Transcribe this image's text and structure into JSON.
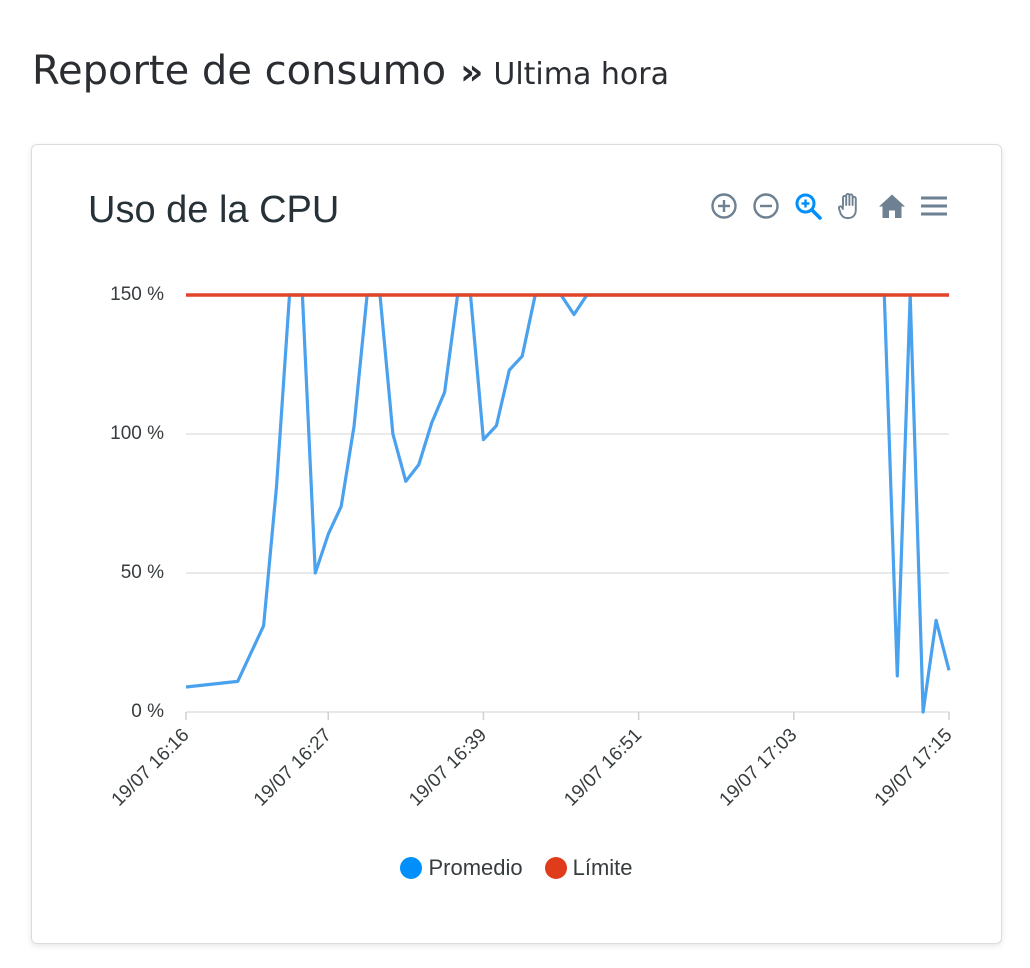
{
  "header": {
    "title": "Reporte de consumo",
    "separator": "»",
    "subtitle": "Ultima hora"
  },
  "toolbar": {
    "icons": [
      "zoom-in-icon",
      "zoom-out-icon",
      "selection-zoom-icon",
      "pan-icon",
      "reset-zoom-icon",
      "menu-icon"
    ],
    "active_color": "#008ffb",
    "inactive_color": "#6e8192"
  },
  "chart_data": {
    "type": "line",
    "title": "Uso de la CPU",
    "x_tick_labels": [
      "19/07 16:16",
      "19/07 16:27",
      "19/07 16:39",
      "19/07 16:51",
      "19/07 17:03",
      "19/07 17:15"
    ],
    "xlim": [
      "19/07 16:16",
      "19/07 17:15"
    ],
    "y_tick_labels": [
      "0 %",
      "50 %",
      "100 %",
      "150 %"
    ],
    "y_ticks": [
      0,
      50,
      100,
      150
    ],
    "ylim": [
      0,
      150
    ],
    "grid": true,
    "legend_position": "bottom-center",
    "series": [
      {
        "name": "Promedio",
        "color": "#008ffb",
        "line_color": "#4aa2ee",
        "x": [
          "19/07 16:16",
          "19/07 16:20",
          "19/07 16:22",
          "19/07 16:23",
          "19/07 16:24",
          "19/07 16:25",
          "19/07 16:26",
          "19/07 16:27",
          "19/07 16:28",
          "19/07 16:29",
          "19/07 16:30",
          "19/07 16:31",
          "19/07 16:32",
          "19/07 16:33",
          "19/07 16:34",
          "19/07 16:35",
          "19/07 16:36",
          "19/07 16:37",
          "19/07 16:38",
          "19/07 16:39",
          "19/07 16:40",
          "19/07 16:41",
          "19/07 16:42",
          "19/07 16:43",
          "19/07 16:45",
          "19/07 16:46",
          "19/07 16:47",
          "19/07 17:10",
          "19/07 17:11",
          "19/07 17:12",
          "19/07 17:13",
          "19/07 17:14",
          "19/07 17:15"
        ],
        "values": [
          9,
          11,
          31,
          81,
          150,
          150,
          50,
          64,
          74,
          103,
          150,
          150,
          100,
          83,
          89,
          104,
          115,
          150,
          150,
          98,
          103,
          123,
          128,
          150,
          150,
          143,
          150,
          150,
          13,
          150,
          0,
          33,
          15
        ]
      },
      {
        "name": "Límite",
        "color": "#e03c1c",
        "line_color": "#e04429",
        "x": [
          "19/07 16:16",
          "19/07 17:15"
        ],
        "values": [
          150,
          150
        ]
      }
    ]
  }
}
